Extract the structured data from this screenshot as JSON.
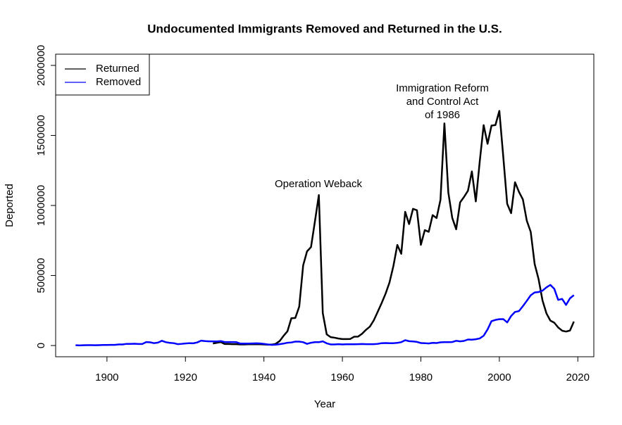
{
  "chart_data": {
    "type": "line",
    "title": "Undocumented Immigrants Removed and Returned in the U.S.",
    "x_label": "Year",
    "y_label": "Deported",
    "x": [
      1892,
      1893,
      1894,
      1895,
      1896,
      1897,
      1898,
      1899,
      1900,
      1901,
      1902,
      1903,
      1904,
      1905,
      1906,
      1907,
      1908,
      1909,
      1910,
      1911,
      1912,
      1913,
      1914,
      1915,
      1916,
      1917,
      1918,
      1919,
      1920,
      1921,
      1922,
      1923,
      1924,
      1925,
      1926,
      1927,
      1928,
      1929,
      1930,
      1931,
      1932,
      1933,
      1934,
      1935,
      1936,
      1937,
      1938,
      1939,
      1940,
      1941,
      1942,
      1943,
      1944,
      1945,
      1946,
      1947,
      1948,
      1949,
      1950,
      1951,
      1952,
      1953,
      1954,
      1955,
      1956,
      1957,
      1958,
      1959,
      1960,
      1961,
      1962,
      1963,
      1964,
      1965,
      1966,
      1967,
      1968,
      1969,
      1970,
      1971,
      1972,
      1973,
      1974,
      1975,
      1976,
      1977,
      1978,
      1979,
      1980,
      1981,
      1982,
      1983,
      1984,
      1985,
      1986,
      1987,
      1988,
      1989,
      1990,
      1991,
      1992,
      1993,
      1994,
      1995,
      1996,
      1997,
      1998,
      1999,
      2000,
      2001,
      2002,
      2003,
      2004,
      2005,
      2006,
      2007,
      2008,
      2009,
      2010,
      2011,
      2012,
      2013,
      2014,
      2015,
      2016,
      2017,
      2018,
      2019
    ],
    "series": [
      {
        "name": "Returned",
        "color": "#000000",
        "values": [
          null,
          null,
          null,
          null,
          null,
          null,
          null,
          null,
          null,
          null,
          null,
          null,
          null,
          null,
          null,
          null,
          null,
          null,
          null,
          null,
          null,
          null,
          null,
          null,
          null,
          null,
          null,
          null,
          null,
          null,
          null,
          null,
          null,
          null,
          null,
          15000,
          20000,
          25000,
          11000,
          11000,
          10000,
          10000,
          8000,
          8000,
          9000,
          9000,
          9000,
          9000,
          8000,
          6000,
          7000,
          12000,
          32000,
          69000,
          102000,
          195000,
          197000,
          278000,
          572000,
          673000,
          703000,
          886000,
          1074000,
          232000,
          80000,
          60000,
          56000,
          50000,
          46000,
          46000,
          47000,
          63000,
          64000,
          84000,
          112000,
          135000,
          180000,
          241000,
          303000,
          370000,
          450000,
          568000,
          718000,
          655000,
          955000,
          867000,
          976000,
          966000,
          719000,
          824000,
          812000,
          931000,
          910000,
          1041000,
          1586000,
          1092000,
          911000,
          830000,
          1022000,
          1061000,
          1105000,
          1243000,
          1029000,
          1313000,
          1573000,
          1440000,
          1570000,
          1574000,
          1675000,
          1349000,
          1012000,
          945000,
          1166000,
          1097000,
          1043000,
          891000,
          811000,
          582000,
          474000,
          322000,
          230000,
          178000,
          163000,
          129000,
          106000,
          100000,
          107000,
          171000
        ]
      },
      {
        "name": "Removed",
        "color": "#0000ff",
        "values": [
          2000,
          1000,
          2000,
          3000,
          3000,
          2000,
          3000,
          4000,
          4000,
          5000,
          5000,
          8000,
          8000,
          12000,
          12000,
          13000,
          11000,
          11000,
          25000,
          23000,
          17000,
          21000,
          34000,
          24000,
          19000,
          17000,
          10000,
          12000,
          15000,
          17000,
          16000,
          22000,
          35000,
          32000,
          30000,
          30000,
          29000,
          32000,
          25000,
          25000,
          25000,
          24000,
          14000,
          14000,
          14000,
          15000,
          16000,
          15000,
          12000,
          8000,
          5000,
          6000,
          10000,
          14000,
          20000,
          22000,
          28000,
          28000,
          24000,
          12000,
          20000,
          24000,
          24000,
          30000,
          16000,
          8000,
          8000,
          10000,
          8000,
          9000,
          9000,
          9000,
          10000,
          11000,
          10000,
          10000,
          10000,
          12000,
          17000,
          18000,
          17000,
          17000,
          19000,
          24000,
          38000,
          31000,
          29000,
          26000,
          18000,
          17000,
          15000,
          19000,
          18000,
          23000,
          24000,
          24000,
          25000,
          34000,
          30000,
          33000,
          43000,
          42000,
          45000,
          51000,
          70000,
          115000,
          174000,
          183000,
          188000,
          189000,
          165000,
          211000,
          240000,
          246000,
          281000,
          319000,
          359000,
          379000,
          382000,
          392000,
          415000,
          433000,
          405000,
          326000,
          333000,
          290000,
          337000,
          360000
        ]
      }
    ],
    "annotations": [
      {
        "text": "Operation Weback"
      },
      {
        "text": [
          "Immigration Reform",
          "and Control Act",
          "of 1986"
        ]
      }
    ],
    "xlim": [
      1886.92,
      2024.08
    ],
    "xticks": [
      1900,
      1920,
      1940,
      1960,
      1980,
      2000,
      2020
    ],
    "ylim": [
      -80000,
      2080000
    ],
    "yticks": [
      0,
      500000,
      1000000,
      1500000,
      2000000
    ],
    "legend": "top-left"
  }
}
